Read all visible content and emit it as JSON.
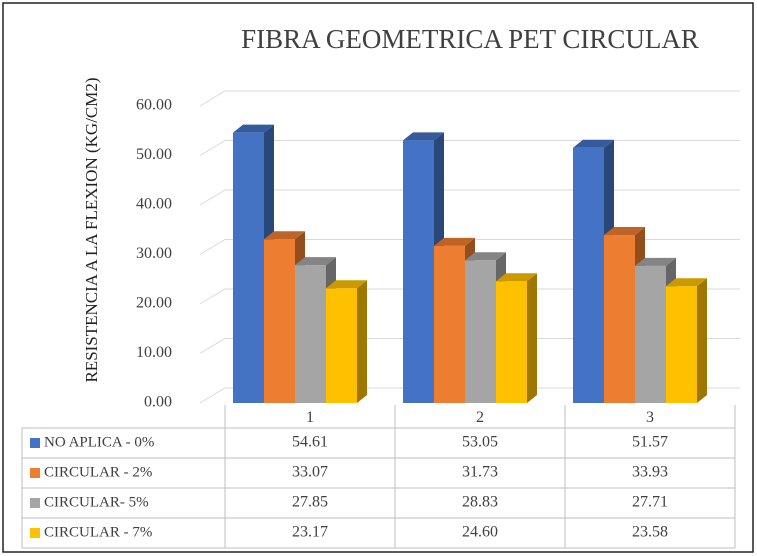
{
  "chart_data": {
    "type": "bar3d",
    "title": "FIBRA GEOMETRICA PET CIRCULAR",
    "y_label": "RESISTENCIA A LA FLEXION (KG/CM2)",
    "categories": [
      "1",
      "2",
      "3"
    ],
    "series": [
      {
        "name": "NO APLICA - 0%",
        "color": "#4472c4",
        "values": [
          54.61,
          53.05,
          51.57
        ],
        "value_labels": [
          "54.61",
          "53.05",
          "51.57"
        ]
      },
      {
        "name": "CIRCULAR - 2%",
        "color": "#ed7d31",
        "values": [
          33.07,
          31.73,
          33.93
        ],
        "value_labels": [
          "33.07",
          "31.73",
          "33.93"
        ]
      },
      {
        "name": "CIRCULAR- 5%",
        "color": "#a5a5a5",
        "values": [
          27.85,
          28.83,
          27.71
        ],
        "value_labels": [
          "27.85",
          "28.83",
          "27.71"
        ]
      },
      {
        "name": "CIRCULAR - 7%",
        "color": "#ffc000",
        "values": [
          23.17,
          24.6,
          23.58
        ],
        "value_labels": [
          "23.17",
          "24.60",
          "23.58"
        ]
      }
    ],
    "ylim": [
      0,
      60
    ],
    "yticks": [
      {
        "value": 0,
        "label": "0.00"
      },
      {
        "value": 10,
        "label": "10.00"
      },
      {
        "value": 20,
        "label": "20.00"
      },
      {
        "value": 30,
        "label": "30.00"
      },
      {
        "value": 40,
        "label": "40.00"
      },
      {
        "value": 50,
        "label": "50.00"
      },
      {
        "value": 60,
        "label": "60.00"
      }
    ],
    "grid": true
  }
}
